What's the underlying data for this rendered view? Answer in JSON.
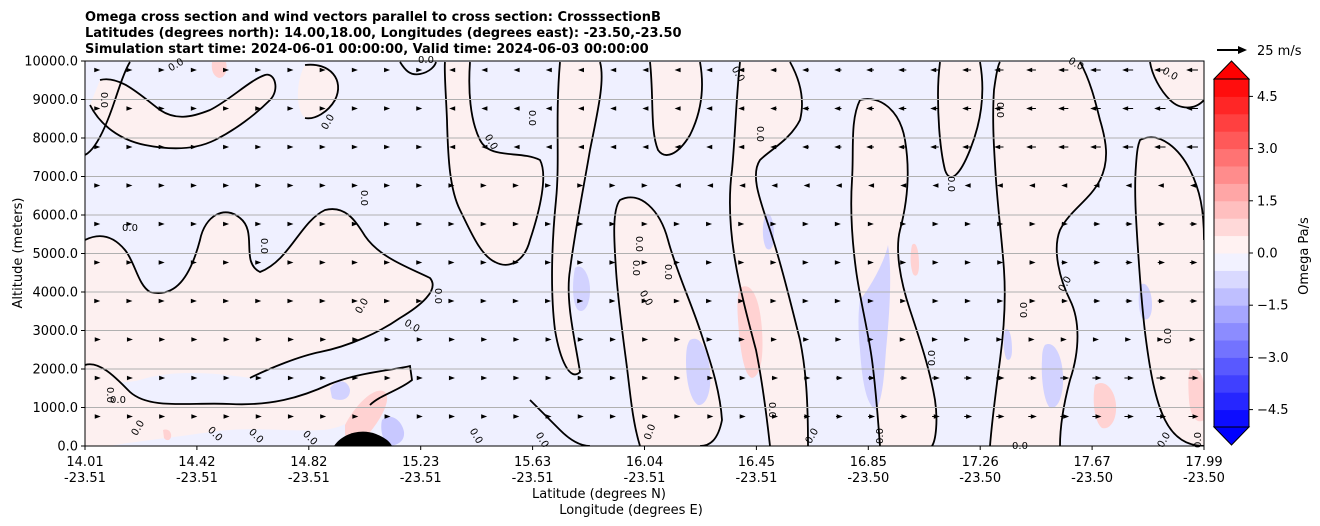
{
  "chart_data": {
    "type": "contour",
    "title_lines": [
      "Omega cross section and wind vectors parallel to cross section: CrosssectionB",
      "Latitudes (degrees north): 14.00,18.00, Longitudes (degrees east): -23.50,-23.50",
      "Simulation start time: 2024-06-01 00:00:00, Valid time: 2024-06-03 00:00:00"
    ],
    "ylabel": "Altitude (meters)",
    "xlabel_lat": "Latitude (degrees N)",
    "xlabel_lon": "Longitude (degrees E)",
    "ylim": [
      0,
      10000
    ],
    "y_ticks": [
      "0.0",
      "1000.0",
      "2000.0",
      "3000.0",
      "4000.0",
      "5000.0",
      "6000.0",
      "7000.0",
      "8000.0",
      "9000.0",
      "10000.0"
    ],
    "x_ticks": [
      {
        "lat": "14.01",
        "lon": "-23.51",
        "pos": 0.0
      },
      {
        "lat": "14.42",
        "lon": "-23.51",
        "pos": 0.1
      },
      {
        "lat": "14.82",
        "lon": "-23.51",
        "pos": 0.2
      },
      {
        "lat": "15.23",
        "lon": "-23.51",
        "pos": 0.3
      },
      {
        "lat": "15.63",
        "lon": "-23.51",
        "pos": 0.4
      },
      {
        "lat": "16.04",
        "lon": "-23.51",
        "pos": 0.5
      },
      {
        "lat": "16.45",
        "lon": "-23.51",
        "pos": 0.6
      },
      {
        "lat": "16.85",
        "lon": "-23.50",
        "pos": 0.7
      },
      {
        "lat": "17.26",
        "lon": "-23.50",
        "pos": 0.8
      },
      {
        "lat": "17.67",
        "lon": "-23.50",
        "pos": 0.9
      },
      {
        "lat": "17.99",
        "lon": "-23.50",
        "pos": 1.0
      }
    ],
    "grid": "horizontal",
    "colorbar": {
      "label": "Omega Pa/s",
      "min": -5.0,
      "max": 5.0,
      "step": 0.5,
      "ticks": [
        "4.5",
        "3.0",
        "1.5",
        "0.0",
        "−1.5",
        "−3.0",
        "−4.5"
      ],
      "tick_values": [
        4.5,
        3.0,
        1.5,
        0.0,
        -1.5,
        -3.0,
        -4.5
      ],
      "extend": "both",
      "cmap": "bwr",
      "low_color": "#0000ff",
      "mid_color": "#ffffff",
      "high_color": "#ff0000"
    },
    "contour_label": "0.0",
    "quiver_key": {
      "label": "25 m/s"
    }
  }
}
